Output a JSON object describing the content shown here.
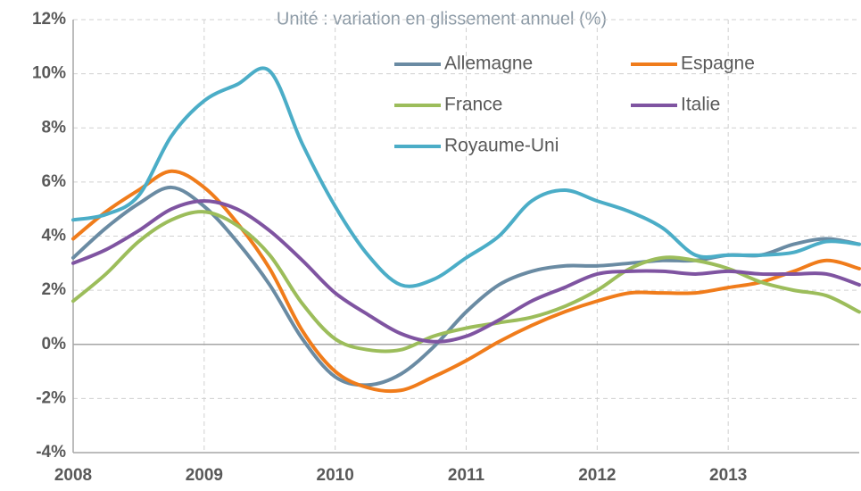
{
  "chart_data": {
    "type": "line",
    "subtitle": "Unité : variation en glissement annuel (%)",
    "x": [
      2008,
      2008.25,
      2008.5,
      2008.75,
      2009,
      2009.25,
      2009.5,
      2009.75,
      2010,
      2010.25,
      2010.5,
      2010.75,
      2011,
      2011.25,
      2011.5,
      2011.75,
      2012,
      2012.25,
      2012.5,
      2012.75,
      2013,
      2013.25,
      2013.5,
      2013.75,
      2014
    ],
    "series": [
      {
        "name": "Allemagne",
        "color": "#6a8ba3",
        "values": [
          3.2,
          4.3,
          5.2,
          5.8,
          5.1,
          3.8,
          2.2,
          0.2,
          -1.2,
          -1.5,
          -1.1,
          -0.1,
          1.2,
          2.2,
          2.7,
          2.9,
          2.9,
          3.0,
          3.1,
          3.1,
          3.3,
          3.3,
          3.7,
          3.9,
          3.7
        ]
      },
      {
        "name": "Espagne",
        "color": "#f07c1b",
        "values": [
          3.9,
          4.9,
          5.7,
          6.4,
          5.8,
          4.5,
          2.8,
          0.5,
          -1.0,
          -1.6,
          -1.7,
          -1.2,
          -0.6,
          0.1,
          0.7,
          1.2,
          1.6,
          1.9,
          1.9,
          1.9,
          2.1,
          2.3,
          2.7,
          3.1,
          2.8
        ]
      },
      {
        "name": "France",
        "color": "#9cbd5b",
        "values": [
          1.6,
          2.6,
          3.8,
          4.6,
          4.9,
          4.4,
          3.3,
          1.5,
          0.2,
          -0.2,
          -0.2,
          0.3,
          0.6,
          0.8,
          1.0,
          1.4,
          2.0,
          2.8,
          3.2,
          3.1,
          2.8,
          2.3,
          2.0,
          1.8,
          1.2
        ]
      },
      {
        "name": "Italie",
        "color": "#7f54a1",
        "values": [
          3.0,
          3.5,
          4.2,
          5.0,
          5.3,
          5.0,
          4.2,
          3.1,
          1.9,
          1.1,
          0.4,
          0.1,
          0.3,
          0.9,
          1.6,
          2.1,
          2.6,
          2.7,
          2.7,
          2.6,
          2.7,
          2.6,
          2.6,
          2.6,
          2.2
        ]
      },
      {
        "name": "Royaume-Uni",
        "color": "#4badc7",
        "values": [
          4.6,
          4.8,
          5.5,
          7.7,
          9.0,
          9.6,
          10.1,
          7.4,
          5.1,
          3.3,
          2.2,
          2.4,
          3.2,
          4.0,
          5.3,
          5.7,
          5.3,
          4.9,
          4.3,
          3.3,
          3.3,
          3.3,
          3.4,
          3.8,
          3.7
        ]
      }
    ],
    "xlim": [
      2008,
      2014
    ],
    "xticks": [
      2008,
      2009,
      2010,
      2011,
      2012,
      2013
    ],
    "ylim": [
      -4,
      12
    ],
    "yticks": [
      {
        "value": -4,
        "label": "-4%"
      },
      {
        "value": -2,
        "label": "-2%"
      },
      {
        "value": 0,
        "label": "0%"
      },
      {
        "value": 2,
        "label": "2%"
      },
      {
        "value": 4,
        "label": "4%"
      },
      {
        "value": 6,
        "label": "6%"
      },
      {
        "value": 8,
        "label": "8%"
      },
      {
        "value": 10,
        "label": "10%"
      },
      {
        "value": 12,
        "label": "12%"
      }
    ],
    "grid": true
  }
}
